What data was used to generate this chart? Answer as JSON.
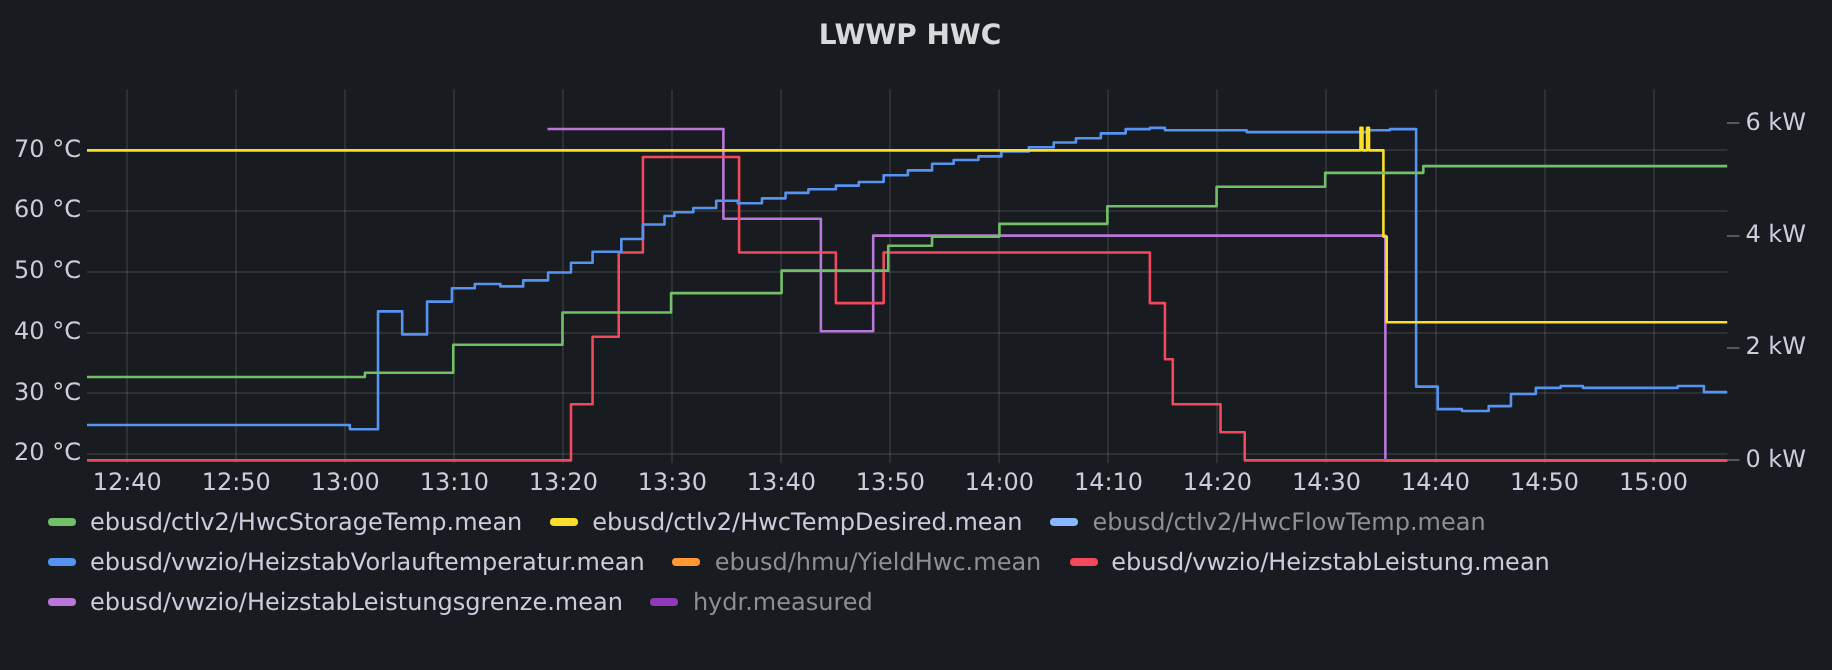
{
  "chart_data": {
    "type": "step",
    "title": "LWWP HWC",
    "xlim": [
      12.605,
      15.113
    ],
    "xticks": [
      {
        "value": 12.6667,
        "label": "12:40"
      },
      {
        "value": 12.8333,
        "label": "12:50"
      },
      {
        "value": 13,
        "label": "13:00"
      },
      {
        "value": 13.1667,
        "label": "13:10"
      },
      {
        "value": 13.3333,
        "label": "13:20"
      },
      {
        "value": 13.5,
        "label": "13:30"
      },
      {
        "value": 13.6667,
        "label": "13:40"
      },
      {
        "value": 13.8333,
        "label": "13:50"
      },
      {
        "value": 14,
        "label": "14:00"
      },
      {
        "value": 14.1667,
        "label": "14:10"
      },
      {
        "value": 14.3333,
        "label": "14:20"
      },
      {
        "value": 14.5,
        "label": "14:30"
      },
      {
        "value": 14.6667,
        "label": "14:40"
      },
      {
        "value": 14.8333,
        "label": "14:50"
      },
      {
        "value": 15,
        "label": "15:00"
      }
    ],
    "ylim": [
      18.5,
      80
    ],
    "yticks": [
      {
        "value": 20,
        "label": "20 °C"
      },
      {
        "value": 30,
        "label": "30 °C"
      },
      {
        "value": 40,
        "label": "40 °C"
      },
      {
        "value": 50,
        "label": "50 °C"
      },
      {
        "value": 60,
        "label": "60 °C"
      },
      {
        "value": 70,
        "label": "70 °C"
      }
    ],
    "y2lim": [
      -0.05,
      6.6
    ],
    "y2ticks": [
      {
        "value": 0,
        "label": "0 kW"
      },
      {
        "value": 2,
        "label": "2 kW"
      },
      {
        "value": 4,
        "label": "4 kW"
      },
      {
        "value": 6,
        "label": "6 kW"
      }
    ],
    "grid": true,
    "legend": "bottom",
    "marker": "none",
    "line_style": "solid",
    "series": [
      {
        "name": "ebusd/ctlv2/HwcStorageTemp.mean",
        "color": "#73bf69",
        "x": [
          12.605,
          13.03,
          13.165,
          13.332,
          13.498,
          13.667,
          13.83,
          13.897,
          14.0,
          14.165,
          14.332,
          14.498,
          14.648,
          15.113
        ],
        "values": [
          32.7,
          33.4,
          38.0,
          43.3,
          46.5,
          50.2,
          54.3,
          55.8,
          57.9,
          60.8,
          64.0,
          66.3,
          67.4,
          67.4
        ]
      },
      {
        "name": "ebusd/ctlv2/HwcTempDesired.mean",
        "color": "#fade2a",
        "x": [
          12.605,
          14.552,
          14.555,
          14.562,
          14.565,
          14.587,
          14.592,
          15.113
        ],
        "values": [
          70,
          73.7,
          70,
          73.7,
          70,
          55.8,
          41.7,
          41.7
        ]
      },
      {
        "name": "ebusd/ctlv2/HwcFlowTemp.mean",
        "color": "#8ab8ff"
      },
      {
        "name": "ebusd/vwzio/HeizstabVorlauftemperatur.mean",
        "color": "#5794f2",
        "x": [
          12.605,
          13.007,
          13.05,
          13.087,
          13.125,
          13.163,
          13.198,
          13.237,
          13.272,
          13.31,
          13.345,
          13.378,
          13.422,
          13.455,
          13.488,
          13.503,
          13.532,
          13.567,
          13.6,
          13.637,
          13.673,
          13.708,
          13.75,
          13.785,
          13.823,
          13.86,
          13.897,
          13.93,
          13.968,
          14.003,
          14.045,
          14.083,
          14.117,
          14.155,
          14.193,
          14.23,
          14.253,
          14.378,
          14.563,
          14.597,
          14.637,
          14.67,
          14.707,
          14.748,
          14.782,
          14.82,
          14.858,
          14.892,
          15.037,
          15.077,
          15.113
        ],
        "values": [
          24.8,
          24.1,
          43.5,
          39.7,
          45.1,
          47.3,
          48.0,
          47.6,
          48.6,
          49.9,
          51.5,
          53.3,
          55.4,
          57.8,
          59.2,
          59.8,
          60.5,
          61.7,
          61.3,
          62.1,
          63.0,
          63.6,
          64.2,
          64.8,
          65.9,
          66.7,
          67.8,
          68.4,
          69.0,
          69.8,
          70.5,
          71.3,
          72.0,
          72.8,
          73.5,
          73.7,
          73.3,
          73.0,
          73.3,
          73.5,
          31.1,
          27.4,
          27.1,
          27.9,
          29.9,
          30.9,
          31.2,
          30.9,
          31.2,
          30.2,
          30.2
        ]
      },
      {
        "name": "ebusd/hmu/YieldHwc.mean",
        "color": "#ff9830",
        "axis": "y2"
      },
      {
        "name": "ebusd/vwzio/HeizstabLeistung.mean",
        "color": "#f2495c",
        "axis": "y2",
        "x": [
          12.605,
          13.345,
          13.378,
          13.418,
          13.455,
          13.602,
          13.75,
          13.823,
          14.23,
          14.253,
          14.265,
          14.338,
          14.375,
          15.113
        ],
        "values": [
          0,
          1.0,
          2.2,
          3.7,
          5.4,
          3.7,
          2.8,
          3.7,
          2.8,
          1.8,
          1.0,
          0.5,
          0,
          0
        ]
      },
      {
        "name": "ebusd/vwzio/HeizstabLeistungsgrenze.mean",
        "color": "#b877d9",
        "axis": "y2",
        "x": [
          13.309,
          13.578,
          13.727,
          13.807,
          14.59,
          15.113
        ],
        "values": [
          5.9,
          4.3,
          2.3,
          4.0,
          0,
          0
        ]
      },
      {
        "name": "hydr.measured",
        "color": "#8f3bb8",
        "axis": "y2"
      }
    ]
  }
}
